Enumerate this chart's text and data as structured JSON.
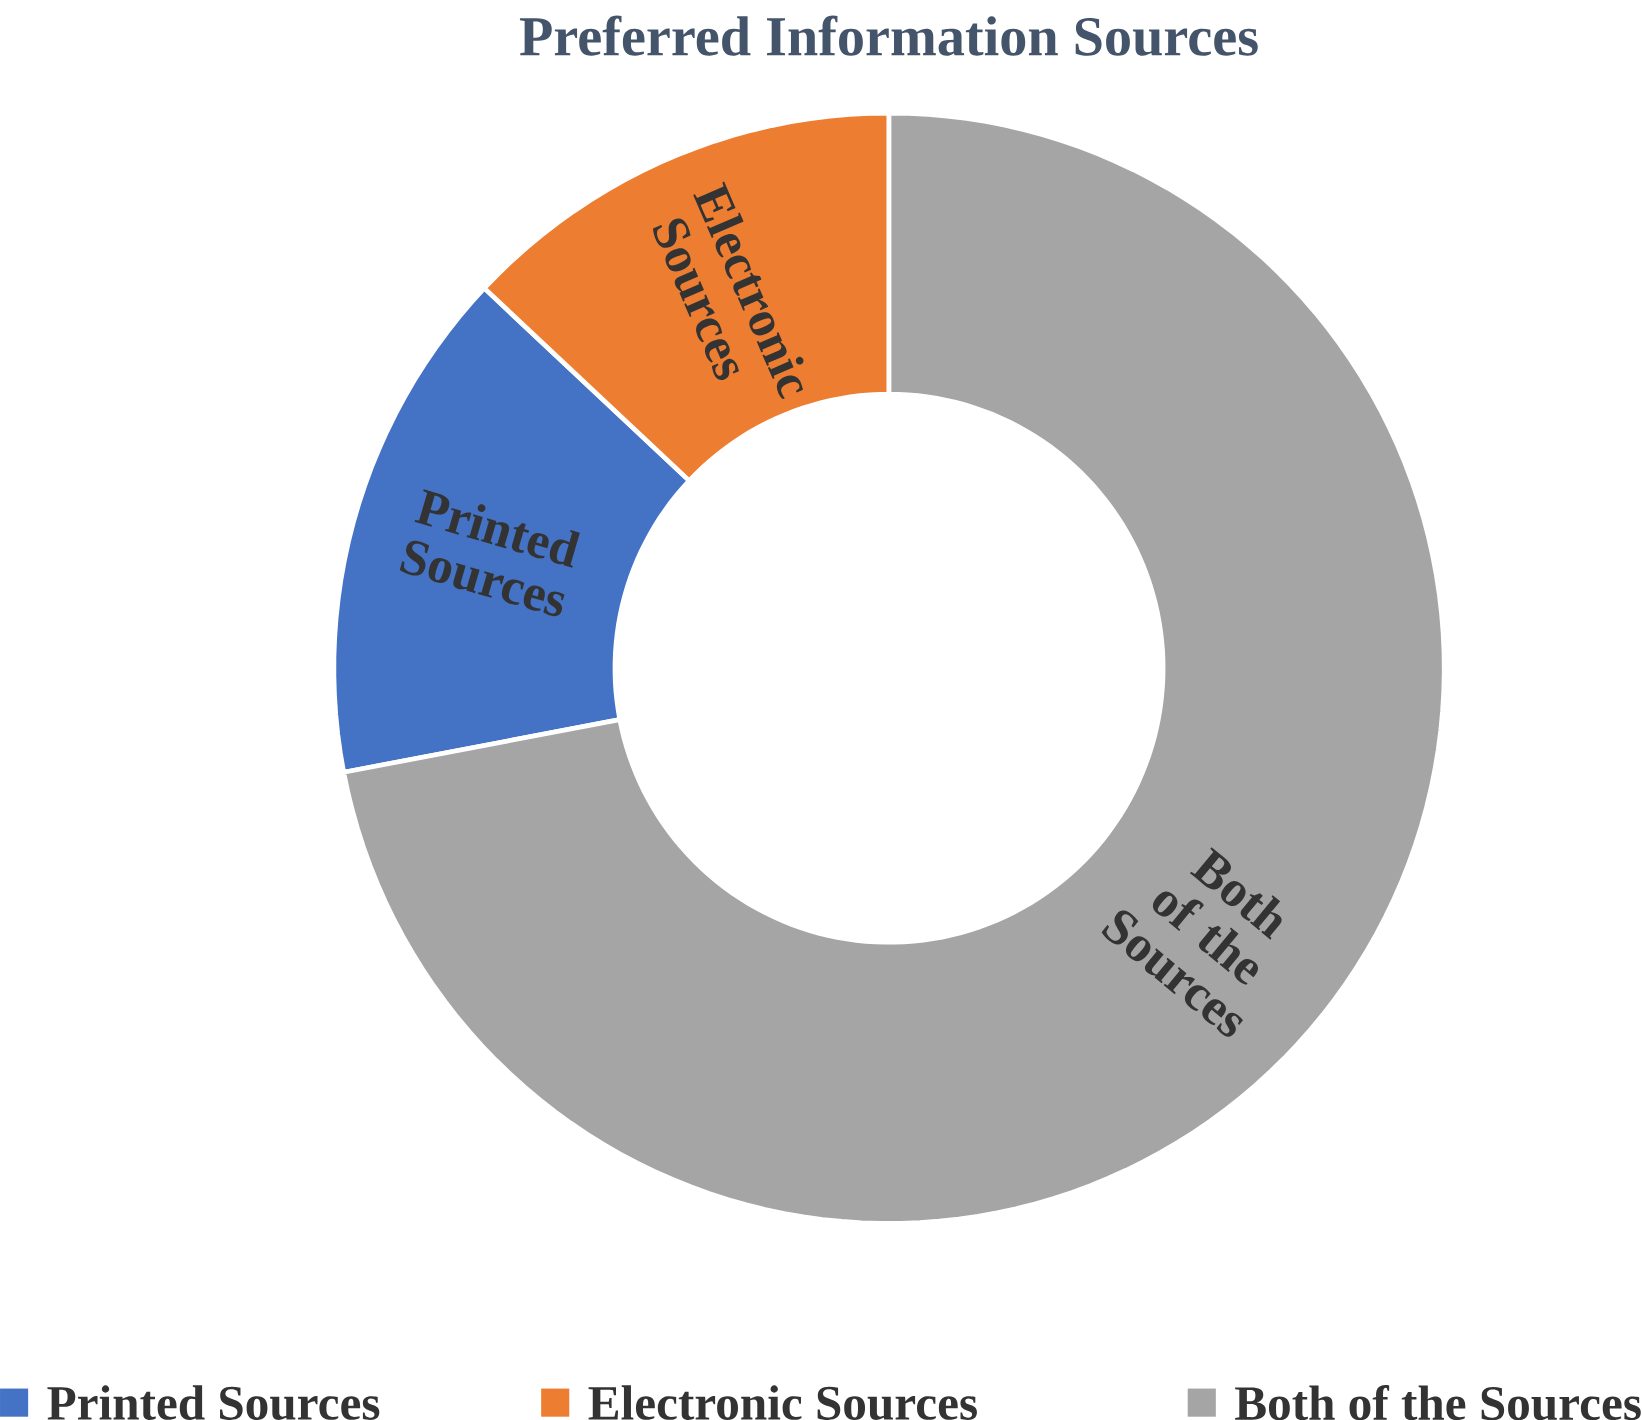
{
  "chart_data": {
    "type": "donut",
    "title": "Preferred  Information Sources",
    "categories": [
      "Printed Sources",
      "Electronic Sources",
      "Both of the Sources"
    ],
    "values": [
      15,
      13,
      72
    ],
    "colors": [
      "#4472c4",
      "#ed7d31",
      "#a5a5a5"
    ],
    "legend": "bottom"
  }
}
